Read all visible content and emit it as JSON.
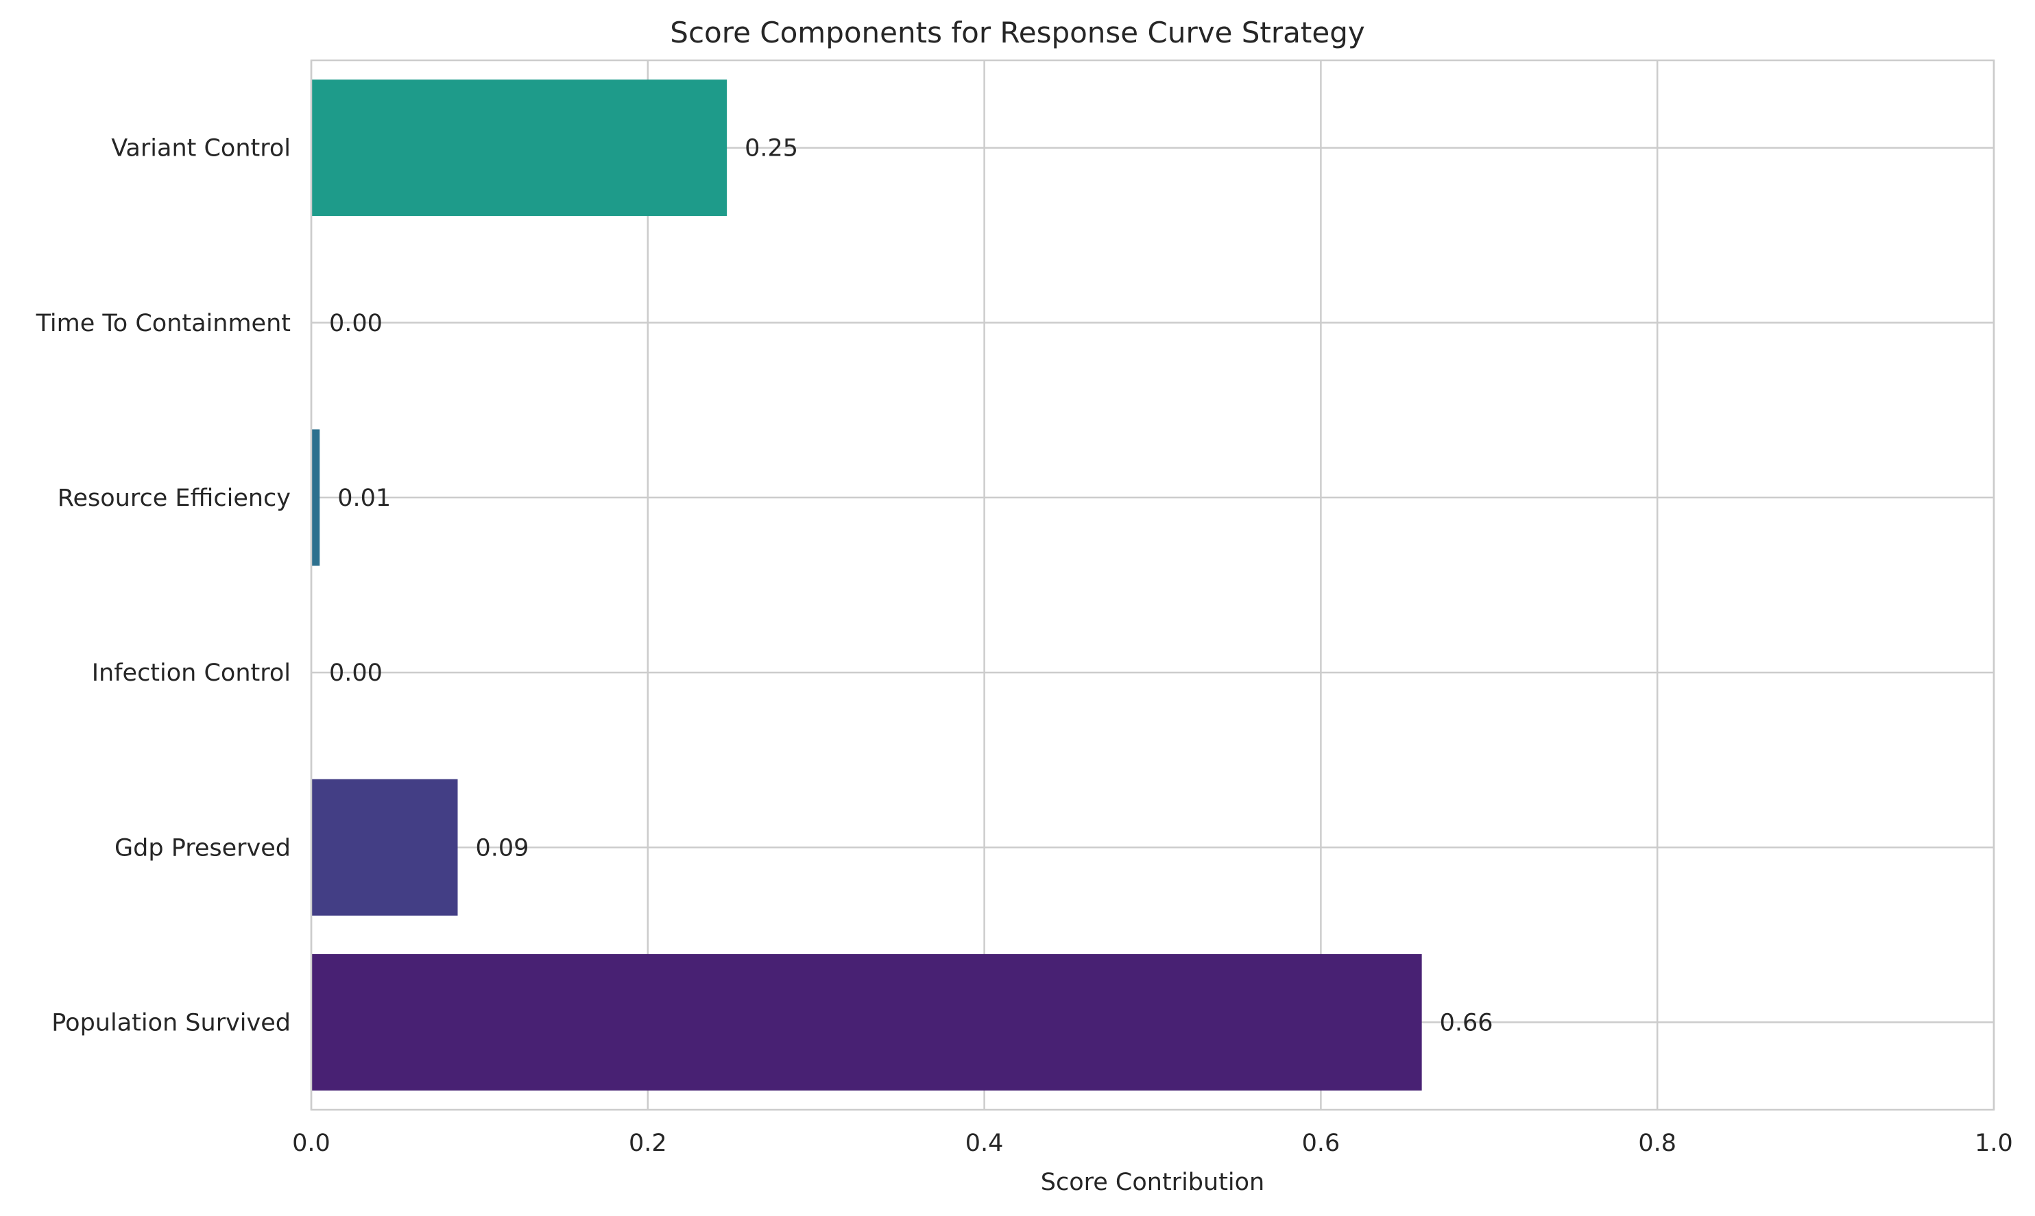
{
  "chart_data": {
    "type": "bar",
    "orientation": "horizontal",
    "title": "Score Components for Response Curve Strategy",
    "xlabel": "Score Contribution",
    "ylabel": "",
    "xlim": [
      0,
      1.0
    ],
    "x_ticks": [
      0.0,
      0.2,
      0.4,
      0.6,
      0.8,
      1.0
    ],
    "x_tick_labels": [
      "0.0",
      "0.2",
      "0.4",
      "0.6",
      "0.8",
      "1.0"
    ],
    "grid": true,
    "categories": [
      "Population Survived",
      "Gdp Preserved",
      "Infection Control",
      "Resource Efficiency",
      "Time To Containment",
      "Variant Control"
    ],
    "values": [
      0.66,
      0.087,
      0.0,
      0.005,
      0.0,
      0.247
    ],
    "value_labels": [
      "0.66",
      "0.09",
      "0.00",
      "0.01",
      "0.00",
      "0.25"
    ],
    "colors": [
      "#482173",
      "#433e85",
      "#38588c",
      "#2d708e",
      "#25858e",
      "#1e9b8a"
    ]
  }
}
